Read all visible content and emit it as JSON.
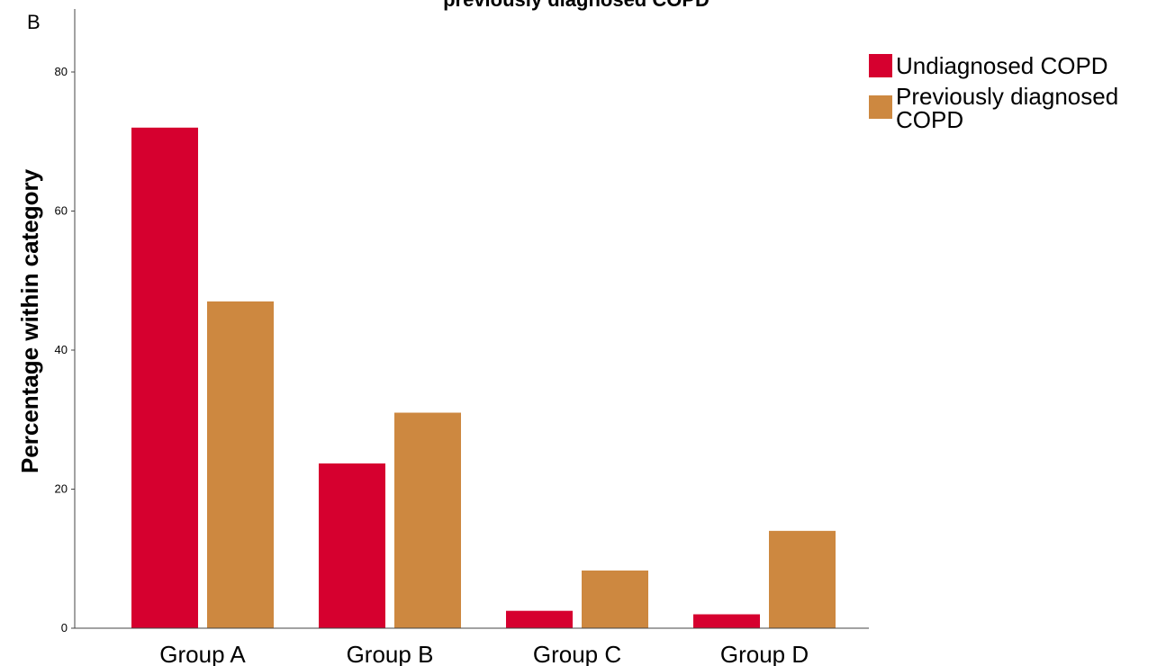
{
  "panel_label": "B",
  "chart_data": {
    "type": "bar",
    "title": "previously diagnosed COPD",
    "ylabel": "Percentage within category",
    "xlabel": "",
    "categories": [
      "Group A",
      "Group B",
      "Group C",
      "Group D"
    ],
    "series": [
      {
        "name": "Undiagnosed COPD",
        "color": "#d6002f",
        "values": [
          72.0,
          23.7,
          2.5,
          2.0
        ]
      },
      {
        "name": "Previously diagnosed COPD",
        "color": "#cd8840",
        "values": [
          47.0,
          31.0,
          8.3,
          14.0
        ]
      }
    ],
    "ylim": [
      0,
      80
    ],
    "yticks": [
      0,
      20,
      40,
      60,
      80
    ],
    "grid": false,
    "legend_position": "top-right"
  }
}
